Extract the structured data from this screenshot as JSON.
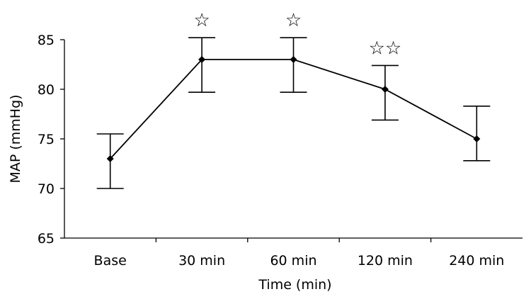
{
  "chart_data": {
    "type": "line",
    "xlabel": "Time (min)",
    "ylabel": "MAP (mmHg)",
    "categories": [
      "Base",
      "30 min",
      "60 min",
      "120 min",
      "240 min"
    ],
    "values": [
      73,
      83,
      83,
      80,
      75
    ],
    "error_upper": [
      75.5,
      85.2,
      85.2,
      82.4,
      78.3
    ],
    "error_lower": [
      70,
      79.7,
      79.7,
      76.9,
      72.8
    ],
    "significance": [
      "",
      "☆",
      "☆",
      "☆☆",
      ""
    ],
    "ylim": [
      65,
      85
    ],
    "yticks": [
      65,
      70,
      75,
      80,
      85
    ],
    "grid": false,
    "line_color": "#000000",
    "marker": "diamond"
  }
}
